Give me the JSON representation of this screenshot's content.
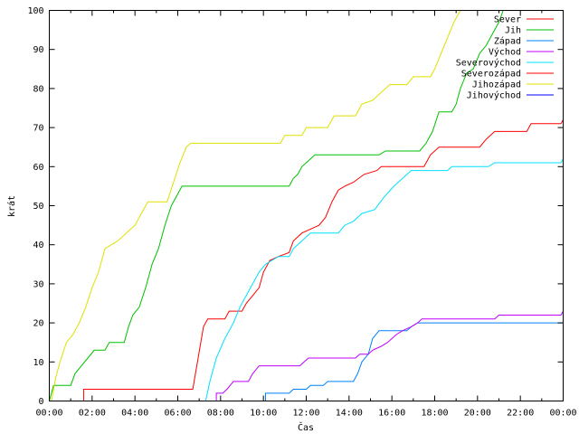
{
  "chart_data": {
    "type": "line",
    "title": "",
    "xlabel": "Čas",
    "ylabel": "krát",
    "ylim": [
      0,
      100
    ],
    "xlim_hours": [
      0,
      24
    ],
    "x_tick_labels": [
      "00:00",
      "02:00",
      "04:00",
      "06:00",
      "08:00",
      "10:00",
      "12:00",
      "14:00",
      "16:00",
      "18:00",
      "20:00",
      "22:00",
      "00:00"
    ],
    "y_ticks": [
      0,
      10,
      20,
      30,
      40,
      50,
      60,
      70,
      80,
      90,
      100
    ],
    "grid": false,
    "legend_position": "top-right",
    "series": [
      {
        "name": "Sever",
        "color": "#ff0000",
        "points": [
          [
            1.6,
            0
          ],
          [
            1.6,
            3
          ],
          [
            6.7,
            3
          ],
          [
            7.2,
            19
          ],
          [
            7.4,
            21
          ],
          [
            8.2,
            21
          ],
          [
            8.4,
            23
          ],
          [
            9.0,
            23
          ],
          [
            9.2,
            25
          ],
          [
            9.5,
            27
          ],
          [
            9.8,
            29
          ],
          [
            10.0,
            33
          ],
          [
            10.3,
            36
          ],
          [
            10.7,
            37
          ],
          [
            11.2,
            38
          ],
          [
            11.4,
            41
          ],
          [
            11.8,
            43
          ],
          [
            12.2,
            44
          ],
          [
            12.6,
            45
          ],
          [
            12.9,
            47
          ],
          [
            13.2,
            51
          ],
          [
            13.5,
            54
          ],
          [
            13.8,
            55
          ],
          [
            14.2,
            56
          ],
          [
            14.7,
            58
          ],
          [
            15.3,
            59
          ],
          [
            15.5,
            60
          ],
          [
            17.5,
            60
          ],
          [
            17.8,
            63
          ],
          [
            18.2,
            65
          ],
          [
            20.1,
            65
          ],
          [
            20.4,
            67
          ],
          [
            20.8,
            69
          ],
          [
            22.3,
            69
          ],
          [
            22.5,
            71
          ],
          [
            23.9,
            71
          ],
          [
            24.0,
            72
          ]
        ]
      },
      {
        "name": "Jih",
        "color": "#00c000",
        "points": [
          [
            0.0,
            0
          ],
          [
            0.2,
            4
          ],
          [
            1.0,
            4
          ],
          [
            1.2,
            7
          ],
          [
            1.5,
            9
          ],
          [
            1.8,
            11
          ],
          [
            2.1,
            13
          ],
          [
            2.6,
            13
          ],
          [
            2.8,
            15
          ],
          [
            3.5,
            15
          ],
          [
            3.7,
            19
          ],
          [
            3.9,
            22
          ],
          [
            4.2,
            24
          ],
          [
            4.5,
            29
          ],
          [
            4.8,
            35
          ],
          [
            5.1,
            39
          ],
          [
            5.4,
            45
          ],
          [
            5.7,
            50
          ],
          [
            6.0,
            53
          ],
          [
            6.2,
            55
          ],
          [
            11.2,
            55
          ],
          [
            11.4,
            57
          ],
          [
            11.6,
            58
          ],
          [
            11.8,
            60
          ],
          [
            12.0,
            61
          ],
          [
            12.2,
            62
          ],
          [
            12.4,
            63
          ],
          [
            15.4,
            63
          ],
          [
            15.7,
            64
          ],
          [
            17.3,
            64
          ],
          [
            17.6,
            66
          ],
          [
            17.9,
            69
          ],
          [
            18.2,
            74
          ],
          [
            18.8,
            74
          ],
          [
            19.0,
            76
          ],
          [
            19.2,
            80
          ],
          [
            19.5,
            84
          ],
          [
            19.8,
            85
          ],
          [
            20.1,
            89
          ],
          [
            20.4,
            91
          ],
          [
            20.7,
            94
          ],
          [
            21.0,
            97
          ],
          [
            21.2,
            100
          ]
        ]
      },
      {
        "name": "Západ",
        "color": "#0080ff",
        "points": [
          [
            10.1,
            0
          ],
          [
            10.1,
            2
          ],
          [
            11.2,
            2
          ],
          [
            11.4,
            3
          ],
          [
            12.0,
            3
          ],
          [
            12.2,
            4
          ],
          [
            12.8,
            4
          ],
          [
            13.0,
            5
          ],
          [
            14.2,
            5
          ],
          [
            14.4,
            7
          ],
          [
            14.6,
            10
          ],
          [
            14.9,
            12
          ],
          [
            15.1,
            16
          ],
          [
            15.4,
            18
          ],
          [
            16.7,
            18
          ],
          [
            16.9,
            19
          ],
          [
            17.2,
            20
          ],
          [
            24.0,
            20
          ]
        ]
      },
      {
        "name": "Východ",
        "color": "#c000ff",
        "points": [
          [
            7.8,
            0
          ],
          [
            7.8,
            2
          ],
          [
            8.1,
            2
          ],
          [
            8.3,
            3
          ],
          [
            8.6,
            5
          ],
          [
            9.3,
            5
          ],
          [
            9.5,
            7
          ],
          [
            9.8,
            9
          ],
          [
            11.7,
            9
          ],
          [
            11.9,
            10
          ],
          [
            12.1,
            11
          ],
          [
            14.3,
            11
          ],
          [
            14.5,
            12
          ],
          [
            14.9,
            12
          ],
          [
            15.1,
            13
          ],
          [
            15.5,
            14
          ],
          [
            15.8,
            15
          ],
          [
            16.2,
            17
          ],
          [
            16.5,
            18
          ],
          [
            16.9,
            19
          ],
          [
            17.2,
            20
          ],
          [
            17.4,
            21
          ],
          [
            20.8,
            21
          ],
          [
            21.0,
            22
          ],
          [
            23.9,
            22
          ],
          [
            24.0,
            23
          ]
        ]
      },
      {
        "name": "Severovýchod",
        "color": "#00e0ff",
        "points": [
          [
            7.3,
            0
          ],
          [
            7.5,
            5
          ],
          [
            7.8,
            11
          ],
          [
            8.2,
            16
          ],
          [
            8.6,
            20
          ],
          [
            8.9,
            24
          ],
          [
            9.2,
            27
          ],
          [
            9.5,
            30
          ],
          [
            9.8,
            33
          ],
          [
            10.1,
            35
          ],
          [
            10.4,
            36
          ],
          [
            10.7,
            37
          ],
          [
            11.2,
            37
          ],
          [
            11.4,
            39
          ],
          [
            11.8,
            41
          ],
          [
            12.2,
            43
          ],
          [
            13.5,
            43
          ],
          [
            13.8,
            45
          ],
          [
            14.2,
            46
          ],
          [
            14.6,
            48
          ],
          [
            15.2,
            49
          ],
          [
            15.6,
            52
          ],
          [
            16.1,
            55
          ],
          [
            16.5,
            57
          ],
          [
            16.9,
            59
          ],
          [
            18.6,
            59
          ],
          [
            18.8,
            60
          ],
          [
            20.5,
            60
          ],
          [
            20.8,
            61
          ],
          [
            23.9,
            61
          ],
          [
            24.0,
            62
          ]
        ]
      },
      {
        "name": "Severozápad",
        "color": "#ff0000",
        "points": []
      },
      {
        "name": "Jihozápad",
        "color": "#e0e000",
        "points": [
          [
            0.1,
            0
          ],
          [
            0.3,
            6
          ],
          [
            0.5,
            10
          ],
          [
            0.8,
            15
          ],
          [
            1.1,
            17
          ],
          [
            1.4,
            20
          ],
          [
            1.7,
            24
          ],
          [
            2.0,
            29
          ],
          [
            2.3,
            33
          ],
          [
            2.6,
            39
          ],
          [
            2.9,
            40
          ],
          [
            3.2,
            41
          ],
          [
            3.6,
            43
          ],
          [
            4.0,
            45
          ],
          [
            4.3,
            48
          ],
          [
            4.6,
            51
          ],
          [
            5.5,
            51
          ],
          [
            5.8,
            56
          ],
          [
            6.1,
            61
          ],
          [
            6.4,
            65
          ],
          [
            6.6,
            66
          ],
          [
            10.8,
            66
          ],
          [
            11.0,
            68
          ],
          [
            11.8,
            68
          ],
          [
            12.0,
            70
          ],
          [
            13.0,
            70
          ],
          [
            13.3,
            73
          ],
          [
            14.3,
            73
          ],
          [
            14.6,
            76
          ],
          [
            15.1,
            77
          ],
          [
            15.5,
            79
          ],
          [
            15.9,
            81
          ],
          [
            16.7,
            81
          ],
          [
            17.0,
            83
          ],
          [
            17.8,
            83
          ],
          [
            18.0,
            85
          ],
          [
            18.3,
            89
          ],
          [
            18.6,
            93
          ],
          [
            18.9,
            97
          ],
          [
            19.2,
            100
          ]
        ]
      },
      {
        "name": "Jihovýchod",
        "color": "#0000ff",
        "points": []
      }
    ]
  }
}
